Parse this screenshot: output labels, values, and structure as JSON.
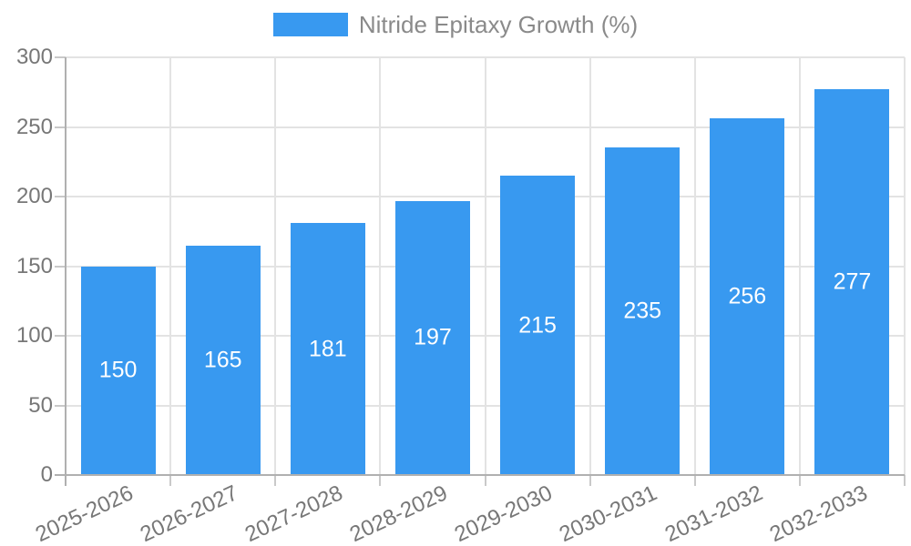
{
  "chart_data": {
    "type": "bar",
    "title": "",
    "categories": [
      "2025-2026",
      "2026-2027",
      "2027-2028",
      "2028-2029",
      "2029-2030",
      "2030-2031",
      "2031-2032",
      "2032-2033"
    ],
    "series": [
      {
        "name": "Nitride Epitaxy Growth (%)",
        "values": [
          150,
          165,
          181,
          197,
          215,
          235,
          256,
          277
        ]
      }
    ],
    "xlabel": "",
    "ylabel": "",
    "ylim": [
      0,
      300
    ],
    "yticks": [
      0,
      50,
      100,
      150,
      200,
      250,
      300
    ],
    "grid": true,
    "legend_position": "top-center",
    "value_label_position": "inside-center",
    "colors": {
      "bar": "#3899F0",
      "grid": "#e3e3e3",
      "axis": "#b0b0b0",
      "tick": "#c9c9c9",
      "tick_text": "#777777",
      "legend_text": "#8a8a8a",
      "value_text": "#ffffff",
      "background": "#ffffff"
    }
  }
}
